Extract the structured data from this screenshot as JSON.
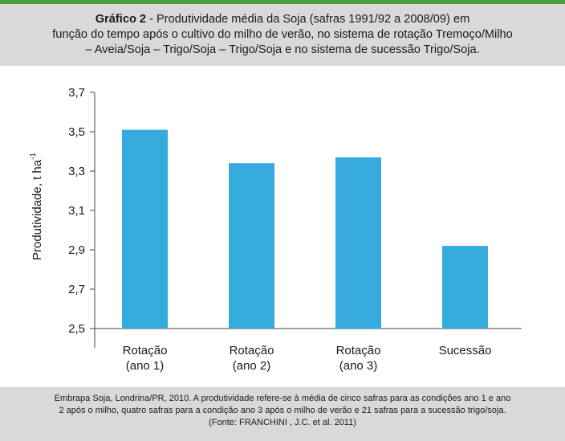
{
  "header": {
    "title_bold": "Gráfico 2",
    "title_line1": " - Produtividade média da Soja (safras 1991/92 a 2008/09) em",
    "title_line2": "função do tempo após o cultivo do milho de verão, no sistema de rotação Tremoço/Milho",
    "title_line3": "– Aveia/Soja – Trigo/Soja – Trigo/Soja e no sistema de sucessão Trigo/Soja."
  },
  "footer": {
    "line1": "Embrapa Soja, Londrina/PR, 2010. A produtividade refere-se à média de cinco safras para as condições ano 1 e ano",
    "line2": "2 após o milho, quatro safras para a condição ano 3 após o milho de verão e 21 safras para a sucessão trigo/soja.",
    "line3": "(Fonte: FRANCHINI , J.C. et al. 2011)"
  },
  "colors": {
    "accent": "#4aa040",
    "bar": "#35aadc",
    "axis": "#444444"
  },
  "chart_data": {
    "type": "bar",
    "categories": [
      [
        "Rotação",
        "(ano 1)"
      ],
      [
        "Rotação",
        "(ano 2)"
      ],
      [
        "Rotação",
        "(ano 3)"
      ],
      [
        "Sucessão"
      ]
    ],
    "values": [
      3.51,
      3.34,
      3.37,
      2.92
    ],
    "ylabel": "Produtividade, t ha",
    "ylabel_superscript": "-1",
    "ylim": [
      2.5,
      3.7
    ],
    "yticks": [
      2.5,
      2.7,
      2.9,
      3.1,
      3.3,
      3.5,
      3.7
    ],
    "ytick_labels": [
      "2,5",
      "2,7",
      "2,9",
      "3,1",
      "3,3",
      "3,5",
      "3,7"
    ],
    "grid": false,
    "legend": "none"
  }
}
